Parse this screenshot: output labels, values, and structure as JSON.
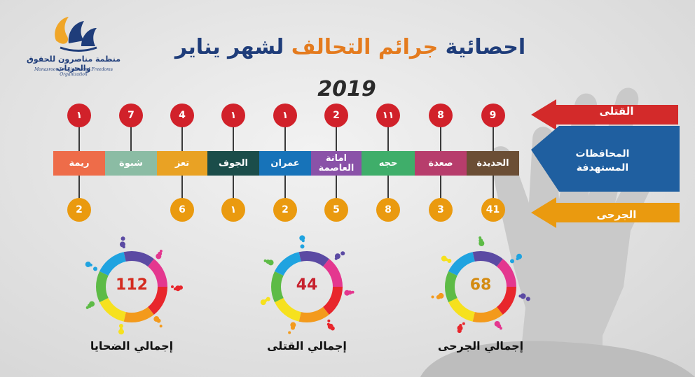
{
  "title": {
    "part1": "احصائية",
    "part2": "جرائم التحالف",
    "part3": "لشهر يناير",
    "year": "2019"
  },
  "logo": {
    "name_ar": "منظمة مناصرون للحقوق والحريات",
    "name_en": "Monasroon for Rights and Freedoms Organization"
  },
  "legend": {
    "killed": "القتلى",
    "governorates": "المحافظات المستهدفة",
    "injured": "الجرحى"
  },
  "governorates": [
    {
      "name": "ريمة",
      "killed": "١",
      "injured": "2",
      "color": "#ee6c49"
    },
    {
      "name": "شبوة",
      "killed": "7",
      "injured": "",
      "color": "#8bbca4"
    },
    {
      "name": "تعز",
      "killed": "4",
      "injured": "6",
      "color": "#e9a224"
    },
    {
      "name": "الجوف",
      "killed": "١",
      "injured": "١",
      "color": "#1b4d4a"
    },
    {
      "name": "عمران",
      "killed": "١",
      "injured": "2",
      "color": "#1773b9"
    },
    {
      "name": "امانة العاصمة",
      "killed": "2",
      "injured": "5",
      "color": "#8a52a8"
    },
    {
      "name": "حجه",
      "killed": "١١",
      "injured": "8",
      "color": "#3fae6a"
    },
    {
      "name": "صعدة",
      "killed": "8",
      "injured": "3",
      "color": "#b73d6c"
    },
    {
      "name": "الحديدة",
      "killed": "9",
      "injured": "41",
      "color": "#6b4e35"
    }
  ],
  "totals": [
    {
      "value": "112",
      "label": "إجمالي الضحايا",
      "color": "#d42b1f"
    },
    {
      "value": "44",
      "label": "إجمالي القتلى",
      "color": "#c7212e"
    },
    {
      "value": "68",
      "label": "إجمالي الجرحى",
      "color": "#d48b12"
    }
  ],
  "colors": {
    "red": "#d1212a",
    "orange": "#ea9a0f",
    "blue": "#1f5fa0",
    "title_blue": "#1f3d7a",
    "title_orange": "#e47b1e"
  }
}
